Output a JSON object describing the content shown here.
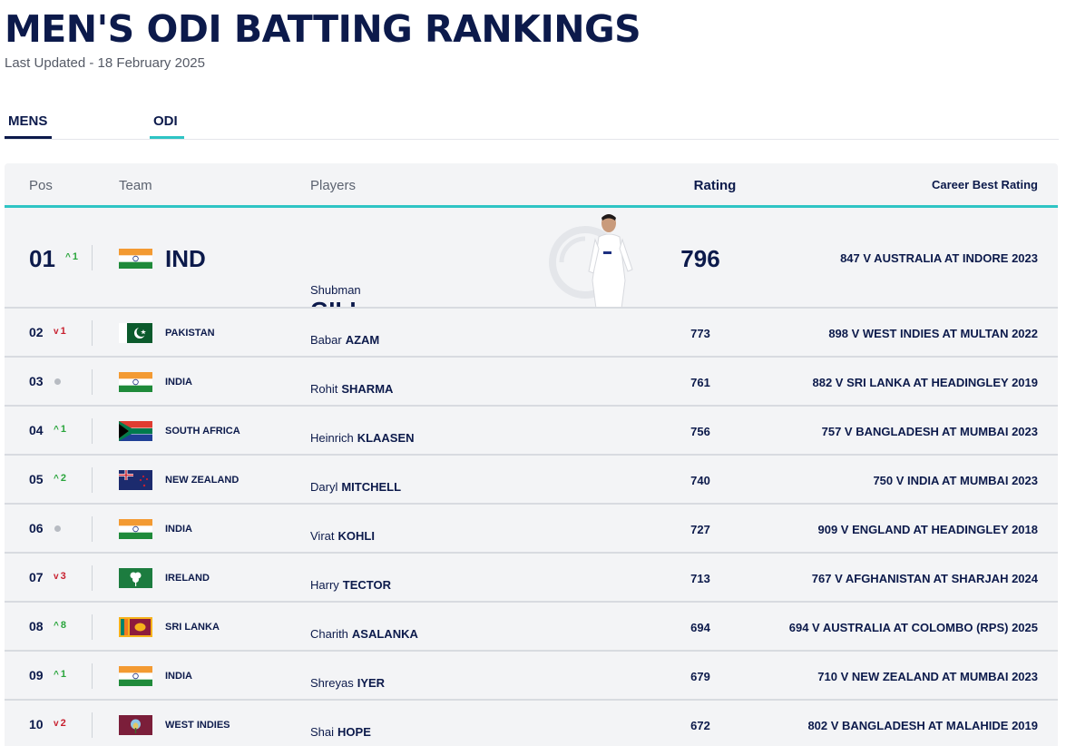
{
  "page": {
    "title": "MEN'S ODI BATTING RANKINGS",
    "last_updated": "Last Updated - 18 February 2025"
  },
  "filters": [
    {
      "label": "MENS"
    },
    {
      "label": "ODI"
    }
  ],
  "columns": {
    "pos": "Pos",
    "team": "Team",
    "players": "Players",
    "rating": "Rating",
    "career": "Career Best Rating"
  },
  "top_player": {
    "pos": "01",
    "move": "1",
    "move_dir": "up",
    "team": "IND",
    "flag": "india-flag-icon",
    "first_name": "Shubman",
    "last_name": "GILL",
    "rating": "796",
    "career_best": "847 V AUSTRALIA AT INDORE 2023"
  },
  "rows": [
    {
      "pos": "02",
      "move": "1",
      "move_dir": "down",
      "team": "PAKISTAN",
      "flag": "pakistan",
      "first": "Babar",
      "last": "AZAM",
      "rating": "773",
      "career": "898 V WEST INDIES AT MULTAN 2022"
    },
    {
      "pos": "03",
      "move": "",
      "move_dir": "none",
      "team": "INDIA",
      "flag": "india",
      "first": "Rohit",
      "last": "SHARMA",
      "rating": "761",
      "career": "882 V SRI LANKA AT HEADINGLEY 2019"
    },
    {
      "pos": "04",
      "move": "1",
      "move_dir": "up",
      "team": "SOUTH AFRICA",
      "flag": "south-africa",
      "first": "Heinrich",
      "last": "KLAASEN",
      "rating": "756",
      "career": "757 V BANGLADESH AT MUMBAI 2023"
    },
    {
      "pos": "05",
      "move": "2",
      "move_dir": "up",
      "team": "NEW ZEALAND",
      "flag": "new-zealand",
      "first": "Daryl",
      "last": "MITCHELL",
      "rating": "740",
      "career": "750 V INDIA AT MUMBAI 2023"
    },
    {
      "pos": "06",
      "move": "",
      "move_dir": "none",
      "team": "INDIA",
      "flag": "india",
      "first": "Virat",
      "last": "KOHLI",
      "rating": "727",
      "career": "909 V ENGLAND AT HEADINGLEY 2018"
    },
    {
      "pos": "07",
      "move": "3",
      "move_dir": "down",
      "team": "IRELAND",
      "flag": "ireland",
      "first": "Harry",
      "last": "TECTOR",
      "rating": "713",
      "career": "767 V AFGHANISTAN AT SHARJAH 2024"
    },
    {
      "pos": "08",
      "move": "8",
      "move_dir": "up",
      "team": "SRI LANKA",
      "flag": "sri-lanka",
      "first": "Charith",
      "last": "ASALANKA",
      "rating": "694",
      "career": "694 V AUSTRALIA AT COLOMBO (RPS) 2025"
    },
    {
      "pos": "09",
      "move": "1",
      "move_dir": "up",
      "team": "INDIA",
      "flag": "india",
      "first": "Shreyas",
      "last": "IYER",
      "rating": "679",
      "career": "710 V NEW ZEALAND AT MUMBAI 2023"
    },
    {
      "pos": "10",
      "move": "2",
      "move_dir": "down",
      "team": "WEST INDIES",
      "flag": "west-indies",
      "first": "Shai",
      "last": "HOPE",
      "rating": "672",
      "career": "802 V BANGLADESH AT MALAHIDE 2019"
    }
  ],
  "colors": {
    "navy": "#0c1a4b",
    "teal": "#2ec4c4",
    "up": "#2aa53c",
    "down": "#c8202f"
  }
}
